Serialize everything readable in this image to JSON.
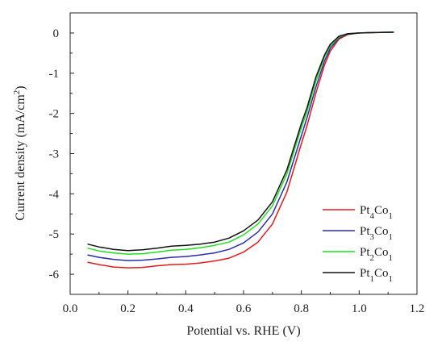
{
  "chart_data": {
    "type": "line",
    "xlabel": "Potential vs. RHE (V)",
    "ylabel": "Current density (mA/cm²)",
    "ylabel_parts": {
      "main": "Current density (mA/cm",
      "sup": "2",
      "end": ")"
    },
    "xlim": [
      0.0,
      1.2
    ],
    "ylim": [
      -6.5,
      0.5
    ],
    "x_ticks": [
      0.0,
      0.2,
      0.4,
      0.6,
      0.8,
      1.0,
      1.2
    ],
    "x_tick_labels": [
      "0.0",
      "0.2",
      "0.4",
      "0.6",
      "0.8",
      "1.0",
      "1.2"
    ],
    "y_ticks": [
      0,
      -1,
      -2,
      -3,
      -4,
      -5,
      -6
    ],
    "y_tick_labels": [
      "0",
      "-1",
      "-2",
      "-3",
      "-4",
      "-5",
      "-6"
    ],
    "grid": false,
    "legend_position": "bottom-right",
    "series": [
      {
        "name": "Pt4Co1",
        "label_parts": [
          [
            "Pt",
            ""
          ],
          [
            "4",
            "sub"
          ],
          [
            "Co",
            ""
          ],
          [
            "1",
            "sub"
          ]
        ],
        "color": "#e31a1c",
        "x": [
          0.06,
          0.1,
          0.15,
          0.2,
          0.25,
          0.3,
          0.35,
          0.4,
          0.45,
          0.5,
          0.55,
          0.6,
          0.65,
          0.7,
          0.75,
          0.8,
          0.82,
          0.85,
          0.88,
          0.9,
          0.93,
          0.96,
          1.0,
          1.05,
          1.12
        ],
        "y": [
          -5.7,
          -5.76,
          -5.82,
          -5.84,
          -5.83,
          -5.79,
          -5.76,
          -5.75,
          -5.72,
          -5.67,
          -5.6,
          -5.45,
          -5.2,
          -4.75,
          -3.95,
          -2.75,
          -2.3,
          -1.5,
          -0.8,
          -0.45,
          -0.15,
          -0.04,
          0.0,
          0.01,
          0.02
        ]
      },
      {
        "name": "Pt3Co1",
        "label_parts": [
          [
            "Pt",
            ""
          ],
          [
            "3",
            "sub"
          ],
          [
            "Co",
            ""
          ],
          [
            "1",
            "sub"
          ]
        ],
        "color": "#2b2bb0",
        "x": [
          0.06,
          0.1,
          0.15,
          0.2,
          0.25,
          0.3,
          0.35,
          0.4,
          0.45,
          0.5,
          0.55,
          0.6,
          0.65,
          0.7,
          0.75,
          0.8,
          0.82,
          0.85,
          0.88,
          0.9,
          0.93,
          0.96,
          1.0,
          1.05,
          1.12
        ],
        "y": [
          -5.52,
          -5.58,
          -5.63,
          -5.66,
          -5.65,
          -5.62,
          -5.58,
          -5.56,
          -5.52,
          -5.47,
          -5.38,
          -5.22,
          -4.95,
          -4.5,
          -3.7,
          -2.55,
          -2.1,
          -1.35,
          -0.7,
          -0.38,
          -0.12,
          -0.03,
          0.0,
          0.01,
          0.02
        ]
      },
      {
        "name": "Pt2Co1",
        "label_parts": [
          [
            "Pt",
            ""
          ],
          [
            "2",
            "sub"
          ],
          [
            "Co",
            ""
          ],
          [
            "1",
            "sub"
          ]
        ],
        "color": "#22dd22",
        "x": [
          0.06,
          0.1,
          0.15,
          0.2,
          0.25,
          0.3,
          0.35,
          0.4,
          0.45,
          0.5,
          0.55,
          0.6,
          0.65,
          0.7,
          0.75,
          0.8,
          0.82,
          0.85,
          0.88,
          0.9,
          0.93,
          0.96,
          1.0,
          1.05,
          1.12
        ],
        "y": [
          -5.35,
          -5.42,
          -5.47,
          -5.5,
          -5.49,
          -5.45,
          -5.4,
          -5.38,
          -5.34,
          -5.28,
          -5.2,
          -5.02,
          -4.75,
          -4.3,
          -3.5,
          -2.35,
          -1.95,
          -1.2,
          -0.6,
          -0.32,
          -0.1,
          -0.02,
          0.0,
          0.01,
          0.02
        ]
      },
      {
        "name": "Pt1Co1",
        "label_parts": [
          [
            "Pt",
            ""
          ],
          [
            "1",
            "sub"
          ],
          [
            "Co",
            ""
          ],
          [
            "1",
            "sub"
          ]
        ],
        "color": "#111111",
        "x": [
          0.06,
          0.1,
          0.15,
          0.2,
          0.25,
          0.3,
          0.35,
          0.4,
          0.45,
          0.5,
          0.55,
          0.6,
          0.65,
          0.7,
          0.75,
          0.8,
          0.82,
          0.85,
          0.88,
          0.9,
          0.93,
          0.96,
          1.0,
          1.05,
          1.12
        ],
        "y": [
          -5.25,
          -5.32,
          -5.38,
          -5.41,
          -5.39,
          -5.35,
          -5.3,
          -5.28,
          -5.25,
          -5.2,
          -5.1,
          -4.92,
          -4.65,
          -4.2,
          -3.4,
          -2.25,
          -1.85,
          -1.1,
          -0.55,
          -0.28,
          -0.08,
          -0.02,
          0.0,
          0.01,
          0.02
        ]
      }
    ]
  }
}
